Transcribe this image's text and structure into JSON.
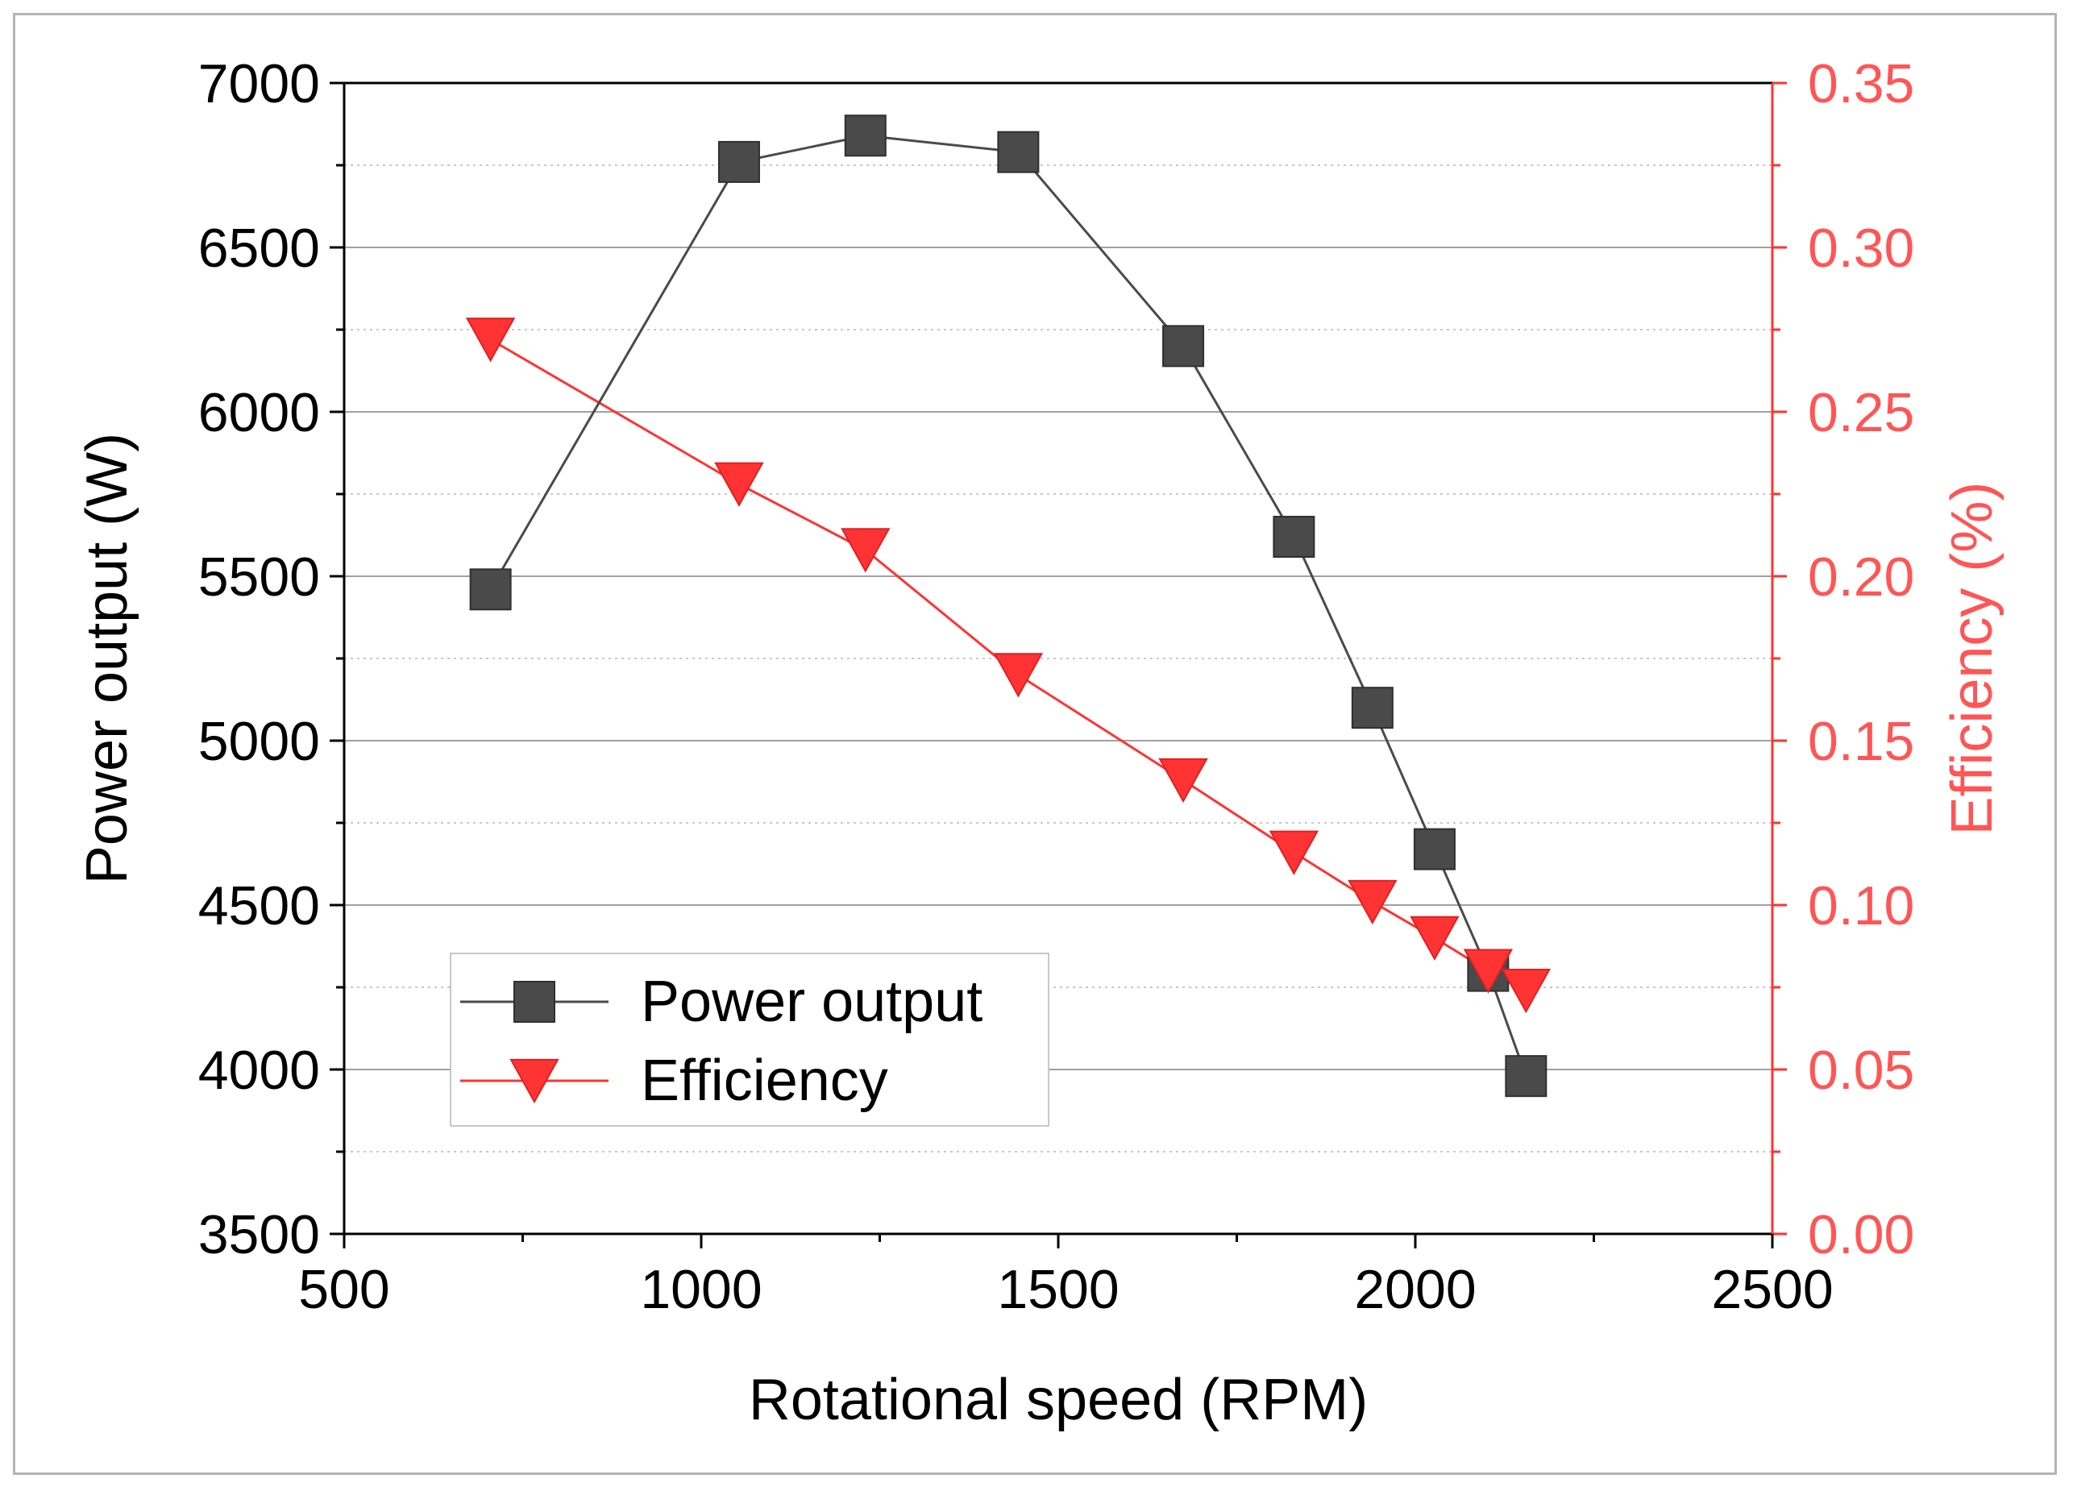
{
  "chart_data": {
    "type": "line",
    "title": "",
    "xlabel": "Rotational speed (RPM)",
    "ylabel": "Power output (W)",
    "y2label": "Efficiency (%)",
    "xlim": [
      500,
      2500
    ],
    "ylim": [
      3500,
      7000
    ],
    "y2lim": [
      0.0,
      0.35
    ],
    "x_ticks": [
      "500",
      "1000",
      "1500",
      "2000",
      "2500"
    ],
    "y_ticks": [
      "3500",
      "4000",
      "4500",
      "5000",
      "5500",
      "6000",
      "6500",
      "7000"
    ],
    "y2_ticks": [
      "0.00",
      "0.05",
      "0.10",
      "0.15",
      "0.20",
      "0.25",
      "0.30",
      "0.35"
    ],
    "grid": true,
    "legend_position": "bottom-left",
    "colors": {
      "power": "#4a4a4a",
      "efficiency": "#ff3333",
      "grid": "#a0a0a0"
    },
    "series": [
      {
        "name": "Power output",
        "axis": "left",
        "marker": "square",
        "x": [
          705,
          1053,
          1230,
          1444,
          1675,
          1830,
          1940,
          2027,
          2102,
          2155
        ],
        "values": [
          5460,
          6760,
          6840,
          6790,
          6200,
          5620,
          5100,
          4670,
          4300,
          3980
        ]
      },
      {
        "name": "Efficiency",
        "axis": "right",
        "marker": "triangle-down",
        "x": [
          705,
          1053,
          1230,
          1444,
          1675,
          1830,
          1940,
          2027,
          2102,
          2155
        ],
        "values": [
          0.272,
          0.228,
          0.208,
          0.17,
          0.138,
          0.116,
          0.101,
          0.09,
          0.08,
          0.074
        ]
      }
    ]
  }
}
